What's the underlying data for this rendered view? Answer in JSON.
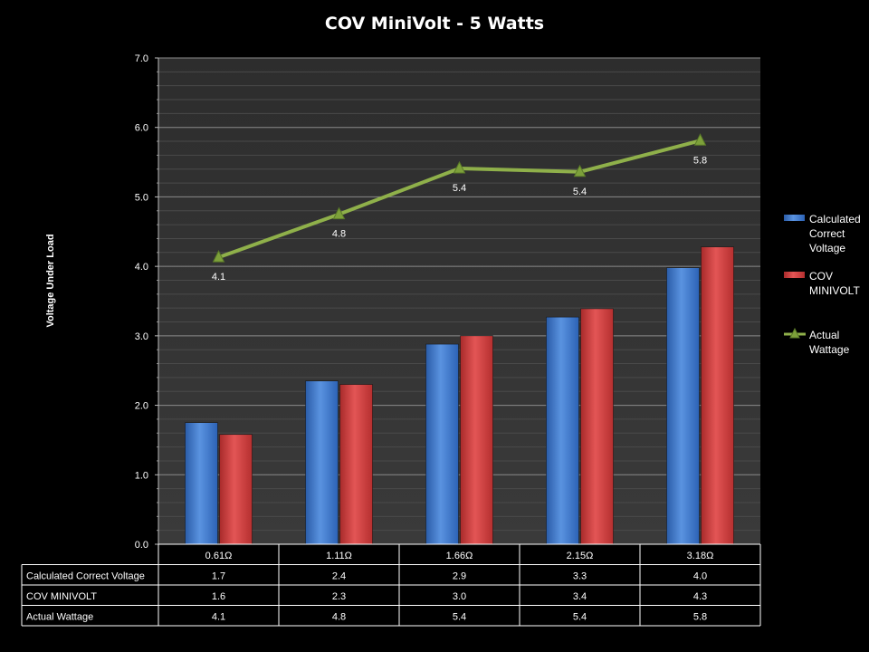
{
  "chart_data": {
    "type": "bar",
    "title": "COV MiniVolt - 5 Watts",
    "ylabel": "Voltage Under Load",
    "xlabel": "",
    "ylim": [
      0,
      7
    ],
    "yticks": [
      "0.0",
      "1.0",
      "2.0",
      "3.0",
      "4.0",
      "5.0",
      "6.0",
      "7.0"
    ],
    "categories": [
      "0.61Ω",
      "1.11Ω",
      "1.66Ω",
      "2.15Ω",
      "3.18Ω"
    ],
    "series": [
      {
        "name": "Calculated Correct Voltage",
        "legend": [
          "Calculated",
          "Correct",
          "Voltage"
        ],
        "kind": "bar",
        "color": "#3b78d0",
        "values": [
          1.75,
          2.35,
          2.88,
          3.27,
          3.98
        ]
      },
      {
        "name": "COV MINIVOLT",
        "legend": [
          "COV",
          "MINIVOLT"
        ],
        "kind": "bar",
        "color": "#d03a3a",
        "values": [
          1.58,
          2.3,
          3.0,
          3.39,
          4.28
        ]
      },
      {
        "name": "Actual Wattage",
        "legend": [
          "Actual",
          "Wattage"
        ],
        "kind": "line",
        "color": "#8fb04a",
        "values": [
          4.13,
          4.75,
          5.41,
          5.36,
          5.81
        ],
        "labels": [
          "4.1",
          "4.8",
          "5.4",
          "5.4",
          "5.8"
        ]
      }
    ],
    "data_table": {
      "rows": [
        {
          "name": "Calculated Correct Voltage",
          "cells": [
            "1.7",
            "2.4",
            "2.9",
            "3.3",
            "4.0"
          ]
        },
        {
          "name": "COV MINIVOLT",
          "cells": [
            "1.6",
            "2.3",
            "3.0",
            "3.4",
            "4.3"
          ]
        },
        {
          "name": "Actual Wattage",
          "cells": [
            "4.1",
            "4.8",
            "5.4",
            "5.4",
            "5.8"
          ]
        }
      ]
    },
    "grid": true,
    "legend_position": "right"
  }
}
